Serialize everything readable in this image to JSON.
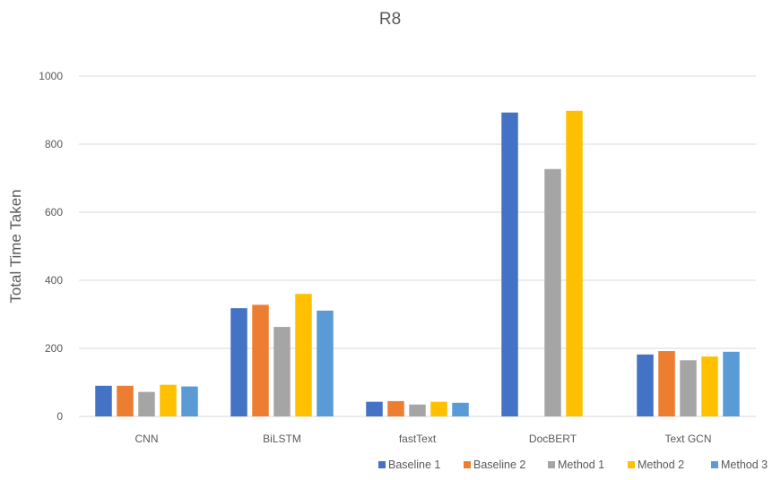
{
  "chart_data": {
    "type": "bar",
    "title": "R8",
    "xlabel": "",
    "ylabel": "Total Time Taken",
    "ylim": [
      0,
      1000
    ],
    "yticks": [
      0,
      200,
      400,
      600,
      800,
      1000
    ],
    "grid": true,
    "legend_position": "bottom-right",
    "categories": [
      "CNN",
      "BiLSTM",
      "fastText",
      "DocBERT",
      "Text GCN"
    ],
    "series": [
      {
        "name": "Baseline 1",
        "color": "#4472c4",
        "values": [
          90,
          318,
          43,
          893,
          182
        ]
      },
      {
        "name": "Baseline 2",
        "color": "#ed7d31",
        "values": [
          90,
          328,
          45,
          0,
          192
        ]
      },
      {
        "name": "Method 1",
        "color": "#a5a5a5",
        "values": [
          72,
          263,
          35,
          727,
          165
        ]
      },
      {
        "name": "Method 2",
        "color": "#ffc000",
        "values": [
          93,
          360,
          43,
          898,
          176
        ]
      },
      {
        "name": "Method 3",
        "color": "#5b9bd5",
        "values": [
          88,
          311,
          40,
          0,
          190
        ]
      }
    ]
  }
}
